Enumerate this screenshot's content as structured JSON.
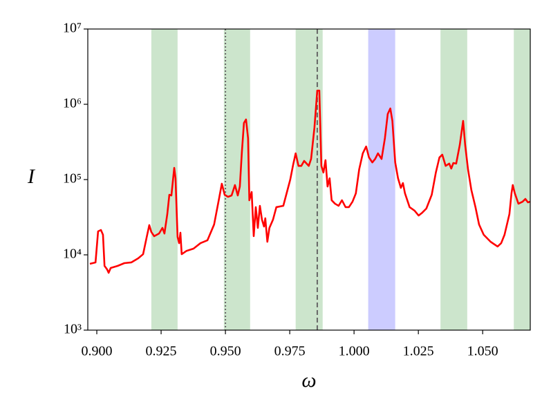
{
  "chart_data": {
    "type": "line",
    "x_label": "ω",
    "y_label": "I",
    "yscale": "log",
    "color": "#ff0000",
    "xlim": [
      0.8965,
      1.0685
    ],
    "ylim": [
      1000,
      10000000
    ],
    "xticks": [
      {
        "value": 0.9,
        "label": "0.900"
      },
      0.925,
      {
        "value": 0.95,
        "label": "0.950"
      },
      0.975,
      {
        "value": 1.0,
        "label": "1.000"
      },
      1.025,
      {
        "value": 1.05,
        "label": "1.050"
      }
    ],
    "yticks": [
      {
        "value": 1000,
        "label": "10³"
      },
      {
        "value": 10000,
        "label": "10⁴"
      },
      {
        "value": 100000,
        "label": "10⁵"
      },
      {
        "value": 1000000,
        "label": "10⁶"
      },
      {
        "value": 10000000,
        "label": "10⁷"
      }
    ],
    "bands": [
      {
        "range": [
          0.9212,
          0.9314
        ],
        "color": "#cce5cc"
      },
      {
        "range": [
          0.9494,
          0.9596
        ],
        "color": "#cce5cc"
      },
      {
        "range": [
          0.9773,
          0.9878
        ],
        "color": "#cce5cc"
      },
      {
        "range": [
          1.0055,
          1.016
        ],
        "color": "#ccccff"
      },
      {
        "range": [
          1.0336,
          1.044
        ],
        "color": "#cce5cc"
      },
      {
        "range": [
          1.0621,
          1.072
        ],
        "color": "#cce5cc"
      }
    ],
    "vlines": [
      {
        "x": 0.95,
        "style": "dotted"
      },
      {
        "x": 0.9857,
        "style": "dashed"
      }
    ],
    "x": [
      0.8973,
      0.8995,
      0.9005,
      0.9016,
      0.9024,
      0.903,
      0.904,
      0.9046,
      0.9054,
      0.9081,
      0.9107,
      0.9134,
      0.9161,
      0.918,
      0.9193,
      0.9204,
      0.9212,
      0.9223,
      0.9242,
      0.9255,
      0.9263,
      0.9274,
      0.9282,
      0.929,
      0.9301,
      0.9306,
      0.9314,
      0.932,
      0.9325,
      0.933,
      0.9349,
      0.9376,
      0.9403,
      0.943,
      0.9456,
      0.9475,
      0.9486,
      0.9497,
      0.951,
      0.9524,
      0.9537,
      0.9548,
      0.9556,
      0.9564,
      0.9572,
      0.958,
      0.9588,
      0.9593,
      0.9602,
      0.961,
      0.9618,
      0.9626,
      0.9634,
      0.9642,
      0.965,
      0.9655,
      0.9663,
      0.9671,
      0.9685,
      0.9698,
      0.9725,
      0.9752,
      0.9763,
      0.9773,
      0.9784,
      0.9795,
      0.9806,
      0.9824,
      0.9833,
      0.9846,
      0.9857,
      0.9865,
      0.9873,
      0.9881,
      0.9889,
      0.9897,
      0.9905,
      0.9913,
      0.9926,
      0.994,
      0.9953,
      0.9967,
      0.998,
      0.9994,
      1.0007,
      1.002,
      1.0034,
      1.0047,
      1.0058,
      1.0071,
      1.0082,
      1.0093,
      1.0107,
      1.012,
      1.0131,
      1.0141,
      1.0149,
      1.016,
      1.0171,
      1.0182,
      1.019,
      1.0198,
      1.0216,
      1.0235,
      1.0251,
      1.0265,
      1.0281,
      1.0302,
      1.0318,
      1.0332,
      1.0343,
      1.0356,
      1.037,
      1.0378,
      1.0386,
      1.0397,
      1.0411,
      1.0424,
      1.0432,
      1.0443,
      1.0456,
      1.0472,
      1.0486,
      1.0504,
      1.0531,
      1.0558,
      1.0572,
      1.0585,
      1.0604,
      1.0612,
      1.0617,
      1.0625,
      1.0639,
      1.0655,
      1.0666,
      1.0676,
      1.0684
    ],
    "values": [
      7600,
      7930,
      20500,
      21400,
      18500,
      7130,
      6410,
      5770,
      6700,
      7130,
      7760,
      7930,
      8990,
      10200,
      16600,
      24800,
      20100,
      17700,
      19200,
      22800,
      19200,
      34800,
      62800,
      61500,
      143000,
      104000,
      17300,
      14300,
      19700,
      10200,
      11300,
      12100,
      14300,
      15600,
      25300,
      55300,
      88100,
      62800,
      59000,
      61500,
      84500,
      61500,
      80900,
      233000,
      565000,
      628000,
      355000,
      53100,
      68400,
      17700,
      43000,
      22800,
      44800,
      29400,
      23800,
      30600,
      14900,
      22800,
      29400,
      43000,
      44800,
      100000,
      156000,
      223000,
      152000,
      152000,
      177000,
      152000,
      188000,
      488000,
      1520000,
      1520000,
      152000,
      124000,
      181000,
      80900,
      104000,
      53100,
      47800,
      44800,
      53100,
      43000,
      43000,
      50800,
      65600,
      137000,
      223000,
      275000,
      197000,
      169000,
      188000,
      223000,
      188000,
      355000,
      744000,
      881000,
      602000,
      169000,
      104000,
      77600,
      89900,
      65600,
      43000,
      38700,
      33300,
      36300,
      41200,
      62800,
      124000,
      197000,
      214000,
      152000,
      163000,
      140000,
      166000,
      163000,
      288000,
      602000,
      288000,
      137000,
      72800,
      43000,
      25300,
      18500,
      14900,
      12900,
      14300,
      18500,
      34800,
      65600,
      84500,
      65600,
      47800,
      50800,
      55300,
      49800,
      50800
    ]
  }
}
